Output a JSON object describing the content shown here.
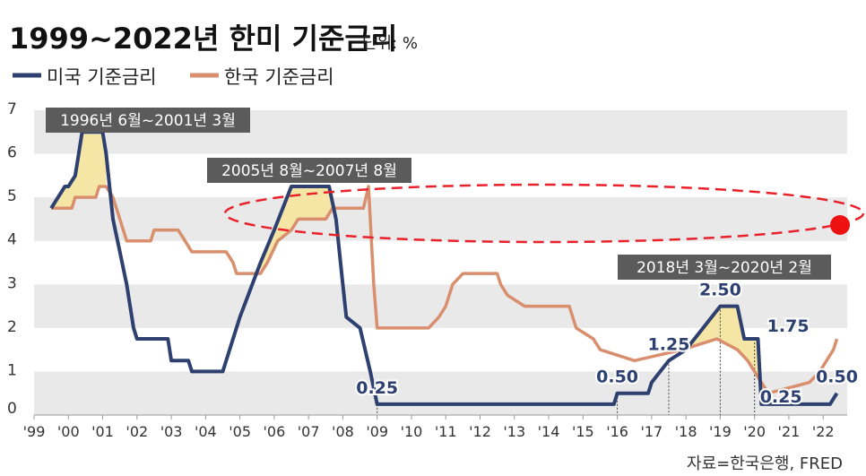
{
  "title": "1999~2022년 한미 기준금리",
  "unit": "단위: %",
  "source": "자료=한국은행, FRED",
  "colors": {
    "us": "#2d4070",
    "korea": "#d98f6e",
    "band": "#e9e9e9",
    "fill": "#f5e6a6",
    "period_box": "#5b5b5b",
    "ellipse": "#e8212b",
    "dot": "#ee1111"
  },
  "periods": [
    {
      "label": "1996년 6월~2001년 3월",
      "start": 1999.5,
      "end": 2001.1
    },
    {
      "label": "2005년 8월~2007년 8월",
      "start": 2005.6,
      "end": 2007.7
    },
    {
      "label": "2018년 3월~2020년 2월",
      "start": 2018.2,
      "end": 2020.1
    }
  ],
  "chart_data": {
    "type": "line",
    "title": "1999~2022년 한미 기준금리",
    "unit": "단위: %",
    "xlim": [
      1999,
      2022.7
    ],
    "ylim": [
      0,
      7
    ],
    "yticks": [
      "0",
      "1",
      "2",
      "3",
      "4",
      "5",
      "6",
      "7"
    ],
    "xticks": [
      "'99",
      "'00",
      "'01",
      "'02",
      "'03",
      "'04",
      "'05",
      "'06",
      "'07",
      "'08",
      "'09",
      "'10",
      "'11",
      "'12",
      "'13",
      "'14",
      "'15",
      "'16",
      "'17",
      "'18",
      "'19",
      "'20",
      "'21",
      "'22"
    ],
    "legend": [
      "미국 기준금리",
      "한국 기준금리"
    ],
    "legend_position": "top-left",
    "series": [
      {
        "name": "미국 기준금리",
        "points": [
          [
            1999.5,
            4.75
          ],
          [
            1999.7,
            5.0
          ],
          [
            1999.9,
            5.25
          ],
          [
            2000.0,
            5.25
          ],
          [
            2000.2,
            5.5
          ],
          [
            2000.3,
            6.0
          ],
          [
            2000.4,
            6.5
          ],
          [
            2001.0,
            6.5
          ],
          [
            2001.1,
            6.0
          ],
          [
            2001.3,
            4.5
          ],
          [
            2001.5,
            3.75
          ],
          [
            2001.7,
            3.0
          ],
          [
            2001.9,
            2.0
          ],
          [
            2002.0,
            1.75
          ],
          [
            2002.9,
            1.75
          ],
          [
            2003.0,
            1.25
          ],
          [
            2003.5,
            1.25
          ],
          [
            2003.6,
            1.0
          ],
          [
            2004.5,
            1.0
          ],
          [
            2004.6,
            1.25
          ],
          [
            2005.0,
            2.25
          ],
          [
            2005.6,
            3.5
          ],
          [
            2006.0,
            4.25
          ],
          [
            2006.5,
            5.25
          ],
          [
            2007.6,
            5.25
          ],
          [
            2007.8,
            4.5
          ],
          [
            2008.0,
            3.0
          ],
          [
            2008.1,
            2.25
          ],
          [
            2008.5,
            2.0
          ],
          [
            2008.8,
            1.0
          ],
          [
            2009.0,
            0.25
          ],
          [
            2015.9,
            0.25
          ],
          [
            2016.0,
            0.5
          ],
          [
            2016.9,
            0.5
          ],
          [
            2017.0,
            0.75
          ],
          [
            2017.5,
            1.25
          ],
          [
            2018.0,
            1.5
          ],
          [
            2018.5,
            2.0
          ],
          [
            2019.0,
            2.5
          ],
          [
            2019.5,
            2.5
          ],
          [
            2019.7,
            1.75
          ],
          [
            2020.1,
            1.75
          ],
          [
            2020.2,
            0.25
          ],
          [
            2022.2,
            0.25
          ],
          [
            2022.4,
            0.5
          ]
        ]
      },
      {
        "name": "한국 기준금리",
        "points": [
          [
            1999.5,
            4.75
          ],
          [
            2000.1,
            4.75
          ],
          [
            2000.2,
            5.0
          ],
          [
            2000.8,
            5.0
          ],
          [
            2000.9,
            5.25
          ],
          [
            2001.1,
            5.25
          ],
          [
            2001.3,
            5.0
          ],
          [
            2001.5,
            4.5
          ],
          [
            2001.7,
            4.0
          ],
          [
            2002.4,
            4.0
          ],
          [
            2002.5,
            4.25
          ],
          [
            2003.2,
            4.25
          ],
          [
            2003.4,
            4.0
          ],
          [
            2003.6,
            3.75
          ],
          [
            2004.6,
            3.75
          ],
          [
            2004.8,
            3.5
          ],
          [
            2004.9,
            3.25
          ],
          [
            2005.6,
            3.25
          ],
          [
            2005.8,
            3.5
          ],
          [
            2005.95,
            3.75
          ],
          [
            2006.1,
            4.0
          ],
          [
            2006.5,
            4.25
          ],
          [
            2006.7,
            4.5
          ],
          [
            2007.5,
            4.5
          ],
          [
            2007.7,
            4.75
          ],
          [
            2008.6,
            4.75
          ],
          [
            2008.75,
            5.25
          ],
          [
            2008.9,
            3.0
          ],
          [
            2009.0,
            2.0
          ],
          [
            2010.5,
            2.0
          ],
          [
            2010.8,
            2.25
          ],
          [
            2011.0,
            2.5
          ],
          [
            2011.2,
            3.0
          ],
          [
            2011.5,
            3.25
          ],
          [
            2012.5,
            3.25
          ],
          [
            2012.6,
            3.0
          ],
          [
            2012.8,
            2.75
          ],
          [
            2013.3,
            2.5
          ],
          [
            2014.6,
            2.5
          ],
          [
            2014.8,
            2.0
          ],
          [
            2015.3,
            1.75
          ],
          [
            2015.5,
            1.5
          ],
          [
            2016.5,
            1.25
          ],
          [
            2017.9,
            1.5
          ],
          [
            2018.9,
            1.75
          ],
          [
            2019.5,
            1.5
          ],
          [
            2019.8,
            1.25
          ],
          [
            2020.2,
            0.75
          ],
          [
            2020.4,
            0.5
          ],
          [
            2021.6,
            0.75
          ],
          [
            2021.9,
            1.0
          ],
          [
            2022.1,
            1.25
          ],
          [
            2022.3,
            1.5
          ],
          [
            2022.4,
            1.75
          ]
        ]
      }
    ],
    "annotations": [
      {
        "text": "0.25",
        "x": 2009.0,
        "y": 0.25,
        "series": "미국 기준금리"
      },
      {
        "text": "0.50",
        "x": 2016.0,
        "y": 0.5,
        "series": "미국 기준금리"
      },
      {
        "text": "1.25",
        "x": 2017.5,
        "y": 1.25,
        "series": "미국 기준금리"
      },
      {
        "text": "2.50",
        "x": 2019.0,
        "y": 2.5,
        "series": "미국 기준금리"
      },
      {
        "text": "1.75",
        "x": 2020.0,
        "y": 1.75,
        "series": "미국 기준금리"
      },
      {
        "text": "0.25",
        "x": 2020.3,
        "y": 0.25,
        "series": "미국 기준금리"
      },
      {
        "text": "0.50",
        "x": 2022.4,
        "y": 0.5,
        "series": "미국 기준금리"
      }
    ]
  }
}
